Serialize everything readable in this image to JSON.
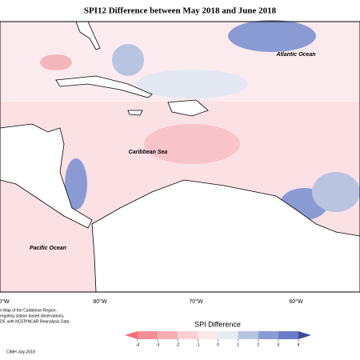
{
  "header": {
    "title": "SPI12 Difference between May 2018 and June 2018"
  },
  "map": {
    "labels": [
      "Atlantic Ocean",
      "Caribbean Sea",
      "Pacific Ocean"
    ],
    "longitudes": [
      "0°W",
      "80°W",
      "70°W",
      "60°W"
    ]
  },
  "legend": {
    "title": "SPI Difference",
    "ticks": [
      -4,
      -3,
      -2,
      -1,
      0,
      1,
      2,
      3,
      4
    ],
    "colors": [
      "#f06e78",
      "#f48f96",
      "#f7aeb3",
      "#fad0d3",
      "#fde9ea",
      "#e7ecf4",
      "#b8c4e0",
      "#8a9bd4",
      "#6a7cc6",
      "#3c4a9a"
    ]
  },
  "footnote": {
    "lines": [
      "n Map of the Caribbean Region.",
      "regating station based observations,",
      "DF, with NCEP/NCAR Reanalysis Data."
    ],
    "credit": "CIMH July-2018"
  }
}
